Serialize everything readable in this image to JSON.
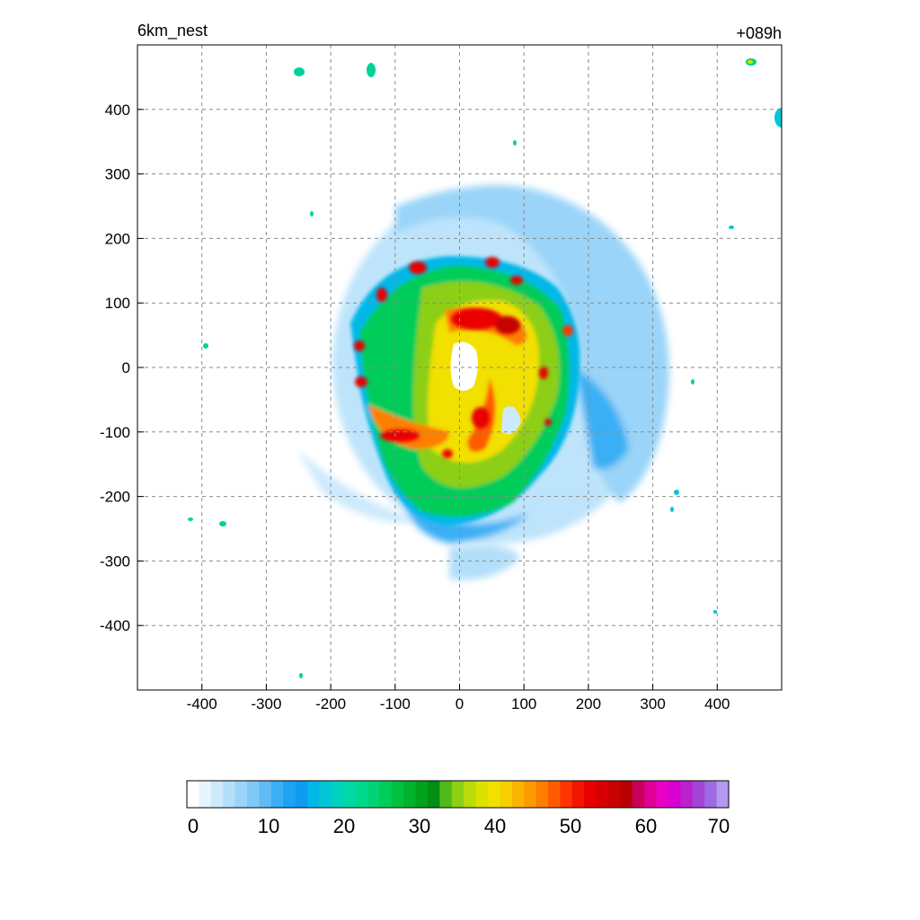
{
  "chart_data": {
    "type": "heatmap",
    "title_left": "6km_nest",
    "title_right": "+089h",
    "x_ticks": [
      -400,
      -300,
      -200,
      -100,
      0,
      100,
      200,
      300,
      400
    ],
    "y_ticks": [
      400,
      300,
      200,
      100,
      0,
      -100,
      -200,
      -300,
      -400
    ],
    "xlim": [
      -500,
      500
    ],
    "ylim": [
      -500,
      500
    ],
    "grid": true,
    "colorbar": {
      "range": [
        0,
        70
      ],
      "step": 2,
      "tick_labels": [
        "0",
        "10",
        "20",
        "30",
        "40",
        "50",
        "60",
        "70"
      ],
      "tick_values": [
        0,
        10,
        20,
        30,
        40,
        50,
        60,
        70
      ],
      "colors": [
        "#ffffff",
        "#e6f4fd",
        "#cdeafc",
        "#b3dffa",
        "#9ad4f8",
        "#7fc9f6",
        "#5fbcf5",
        "#3aaff4",
        "#1ca3f2",
        "#0f9bf0",
        "#00b8e8",
        "#00c6d8",
        "#00d2bf",
        "#00d8a6",
        "#00d98d",
        "#00d474",
        "#00cc5a",
        "#00c13f",
        "#00b32a",
        "#00a21b",
        "#008e14",
        "#4fba1a",
        "#8ccf14",
        "#b9dc0a",
        "#dce200",
        "#f1e000",
        "#f7cf00",
        "#fbb500",
        "#fd9a00",
        "#fe7f00",
        "#ff5c00",
        "#ff3400",
        "#f21600",
        "#e80000",
        "#d80000",
        "#c70000",
        "#b80000",
        "#c8005c",
        "#df0094",
        "#ea00c5",
        "#d800d0",
        "#bb22cc",
        "#a444d4",
        "#9d6ae2",
        "#b399f0"
      ]
    },
    "storm_features": {
      "eye_center_km": [
        12,
        5
      ],
      "eye_radius_km": 20,
      "max_value": 56
    }
  }
}
